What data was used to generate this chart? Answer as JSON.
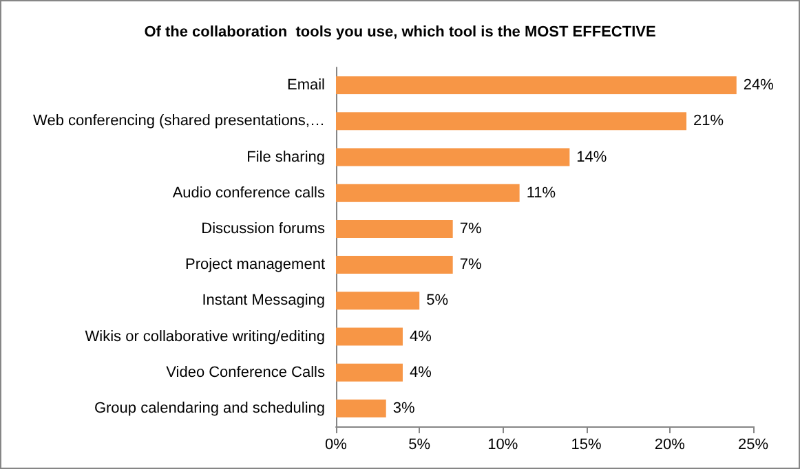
{
  "chart_data": {
    "type": "bar",
    "orientation": "horizontal",
    "title": "Of the collaboration  tools you use, which tool is the MOST EFFECTIVE",
    "categories": [
      "Email",
      "Web conferencing (shared presentations,…",
      "File sharing",
      "Audio conference calls",
      "Discussion forums",
      "Project management",
      "Instant Messaging",
      "Wikis or collaborative writing/editing",
      "Video Conference Calls",
      "Group calendaring and scheduling"
    ],
    "values": [
      24,
      21,
      14,
      11,
      7,
      7,
      5,
      4,
      4,
      3
    ],
    "value_labels": [
      "24%",
      "21%",
      "14%",
      "11%",
      "7%",
      "7%",
      "5%",
      "4%",
      "4%",
      "3%"
    ],
    "color": "#f79646",
    "xlim": [
      0,
      25
    ],
    "xticks": [
      {
        "value": 0,
        "label": "0%"
      },
      {
        "value": 5,
        "label": "5%"
      },
      {
        "value": 10,
        "label": "10%"
      },
      {
        "value": 15,
        "label": "15%"
      },
      {
        "value": 20,
        "label": "20%"
      },
      {
        "value": 25,
        "label": "25%"
      }
    ]
  }
}
